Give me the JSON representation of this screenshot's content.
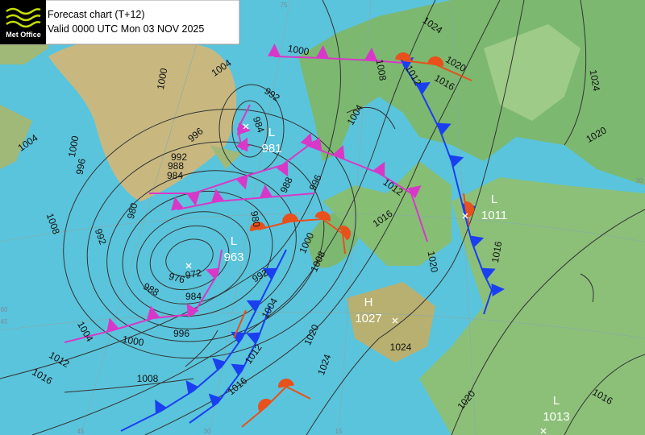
{
  "header": {
    "logo": "Met Office",
    "title": "Forecast chart (T+12)",
    "valid": "Valid 0000 UTC Mon 03 NOV 2025"
  },
  "pressure_centres": [
    {
      "type": "L",
      "value": "981"
    },
    {
      "type": "L",
      "value": "963"
    },
    {
      "type": "H",
      "value": "1027"
    },
    {
      "type": "L",
      "value": "1011"
    },
    {
      "type": "L",
      "value": "1013"
    }
  ],
  "isobar_labels": [
    "1000",
    "1004",
    "1000",
    "992",
    "984",
    "996",
    "992",
    "988",
    "984",
    "980",
    "996",
    "1000",
    "1004",
    "1008",
    "992",
    "988",
    "976",
    "972",
    "984",
    "996",
    "1000",
    "1004",
    "1012",
    "1016",
    "1008",
    "980",
    "988",
    "996",
    "1000",
    "1008",
    "992",
    "1004",
    "1012",
    "1016",
    "1020",
    "1024",
    "1024",
    "1020",
    "1004",
    "1008",
    "1012",
    "1016",
    "1020",
    "1024",
    "1012",
    "1016",
    "1020",
    "1016",
    "1024",
    "1020",
    "1016"
  ],
  "graticule_labels": [
    "75",
    "60",
    "45",
    "45",
    "30",
    "15",
    "30"
  ]
}
